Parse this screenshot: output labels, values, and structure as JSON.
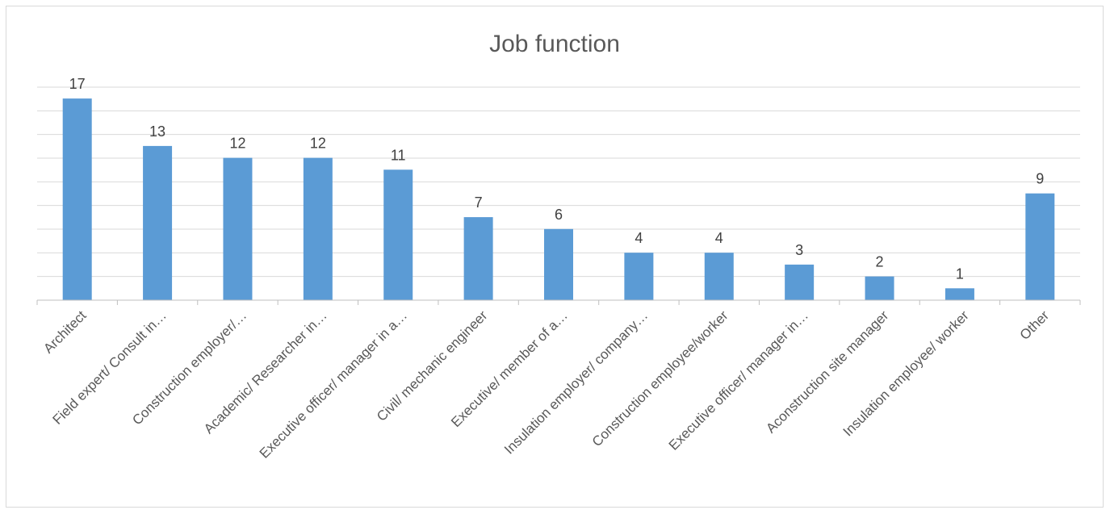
{
  "chart_data": {
    "type": "bar",
    "title": "Job function",
    "xlabel": "",
    "ylabel": "",
    "ylim": [
      0,
      17
    ],
    "grid": true,
    "legend": "none",
    "bar_color": "#5b9bd5",
    "categories": [
      "Architect",
      "Field expert/ Consult in…",
      "Construction employer/…",
      "Academic/ Researcher in…",
      "Executive officer/ manager in a…",
      "Civil/ mechanic engineer",
      "Executive/ member of a…",
      "Insulation employer/ company…",
      "Construction employee/worker",
      "Executive officer/ manager in…",
      "Aconstruction site manager",
      "Insulation employee/ worker",
      "Other"
    ],
    "values": [
      17,
      13,
      12,
      12,
      11,
      7,
      6,
      4,
      4,
      3,
      2,
      1,
      9
    ]
  }
}
